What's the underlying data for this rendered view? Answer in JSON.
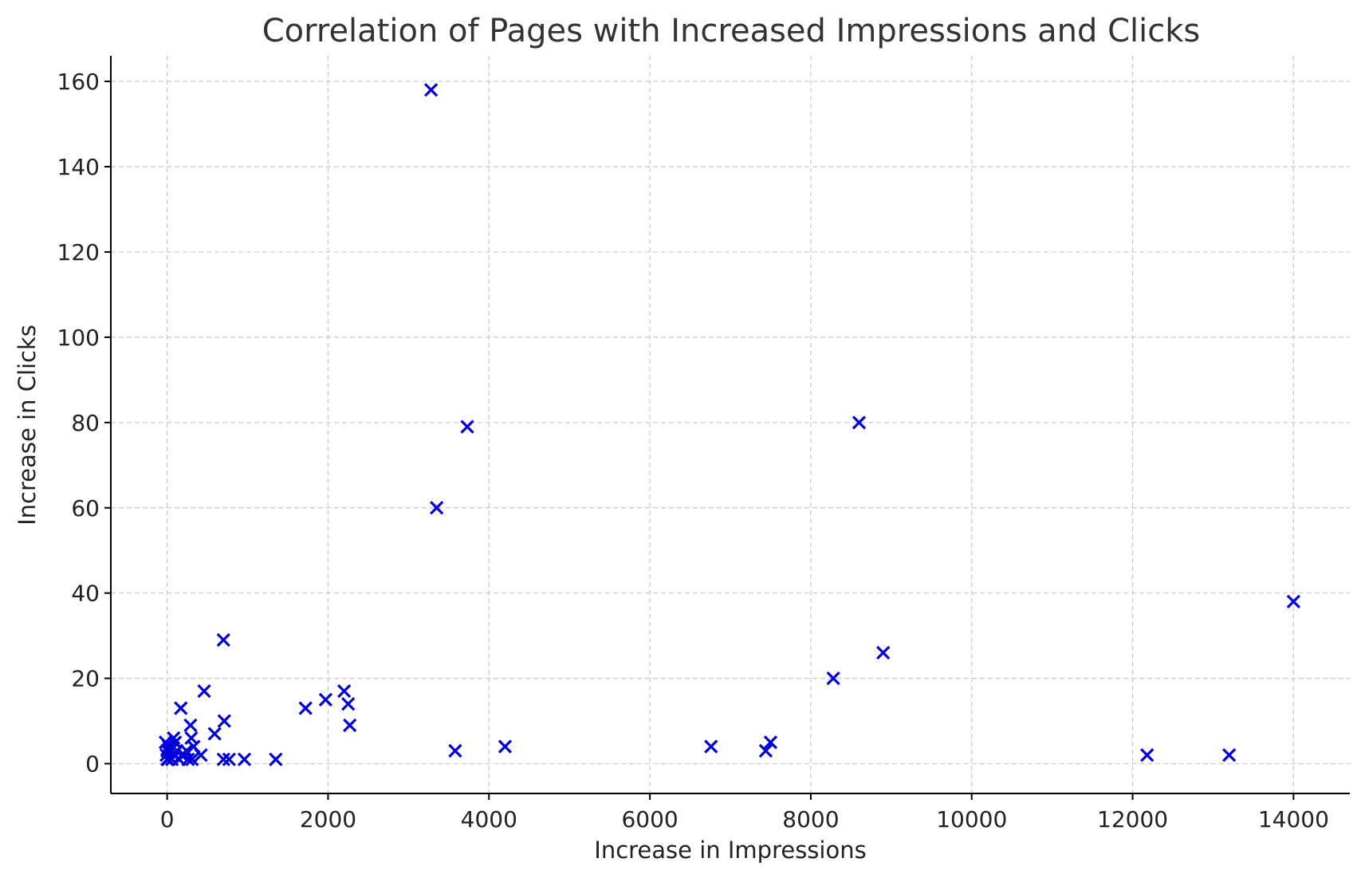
{
  "chart_data": {
    "type": "scatter",
    "title": "Correlation of Pages with Increased Impressions and Clicks",
    "xlabel": "Increase in Impressions",
    "ylabel": "Increase in Clicks",
    "xlim": [
      -700,
      14700
    ],
    "ylim": [
      -7,
      166
    ],
    "xticks": [
      0,
      2000,
      4000,
      6000,
      8000,
      10000,
      12000,
      14000
    ],
    "yticks": [
      0,
      20,
      40,
      60,
      80,
      100,
      120,
      140,
      160
    ],
    "grid": true,
    "marker": "x",
    "color": "#0000dd",
    "series": [
      {
        "points": [
          [
            3280,
            158
          ],
          [
            3730,
            79
          ],
          [
            3350,
            60
          ],
          [
            8600,
            80
          ],
          [
            14000,
            38
          ],
          [
            8900,
            26
          ],
          [
            8280,
            20
          ],
          [
            700,
            29
          ],
          [
            460,
            17
          ],
          [
            170,
            13
          ],
          [
            710,
            10
          ],
          [
            590,
            7
          ],
          [
            290,
            9
          ],
          [
            300,
            6
          ],
          [
            1720,
            13
          ],
          [
            1970,
            15
          ],
          [
            2200,
            17
          ],
          [
            2250,
            14
          ],
          [
            2270,
            9
          ],
          [
            3580,
            3
          ],
          [
            4200,
            4
          ],
          [
            6760,
            4
          ],
          [
            7440,
            3
          ],
          [
            7500,
            5
          ],
          [
            12180,
            2
          ],
          [
            13200,
            2
          ],
          [
            1350,
            1
          ],
          [
            960,
            1
          ],
          [
            770,
            1
          ],
          [
            700,
            1
          ],
          [
            420,
            2
          ],
          [
            330,
            4
          ],
          [
            260,
            1
          ],
          [
            310,
            1
          ],
          [
            210,
            2
          ],
          [
            150,
            1
          ],
          [
            120,
            3
          ],
          [
            100,
            5
          ],
          [
            90,
            2
          ],
          [
            60,
            1
          ],
          [
            40,
            3
          ],
          [
            20,
            4
          ],
          [
            10,
            1
          ],
          [
            -10,
            2
          ],
          [
            -20,
            5
          ],
          [
            0,
            3
          ],
          [
            0,
            1
          ],
          [
            180,
            2
          ],
          [
            240,
            3
          ],
          [
            80,
            6
          ]
        ]
      }
    ]
  }
}
